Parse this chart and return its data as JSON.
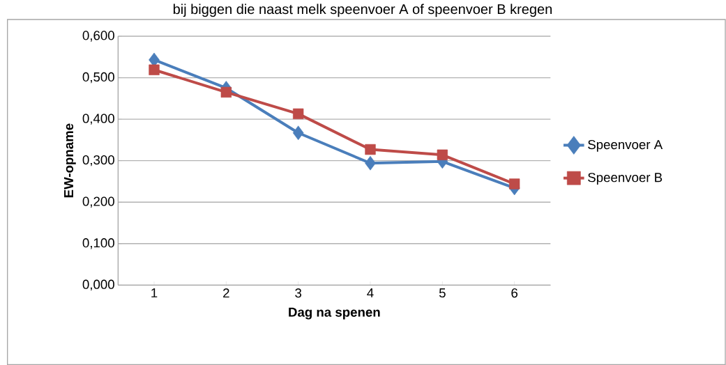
{
  "chart_data": {
    "type": "line",
    "title": "bij biggen die naast melk speenvoer A of speenvoer B kregen",
    "xlabel": "Dag na spenen",
    "ylabel": "EW-opname",
    "categories": [
      "1",
      "2",
      "3",
      "4",
      "5",
      "6"
    ],
    "series": [
      {
        "name": "Speenvoer A",
        "color": "#4a7ebb",
        "marker": "diamond",
        "values": [
          0.543,
          0.475,
          0.367,
          0.294,
          0.298,
          0.234
        ]
      },
      {
        "name": "Speenvoer B",
        "color": "#be4b48",
        "marker": "square",
        "values": [
          0.519,
          0.465,
          0.413,
          0.327,
          0.314,
          0.244
        ]
      }
    ],
    "ylim": [
      0,
      0.6
    ],
    "yticks": [
      {
        "value": 0,
        "label": "0,000"
      },
      {
        "value": 0.1,
        "label": "0,100"
      },
      {
        "value": 0.2,
        "label": "0,200"
      },
      {
        "value": 0.3,
        "label": "0,300"
      },
      {
        "value": 0.4,
        "label": "0,400"
      },
      {
        "value": 0.5,
        "label": "0,500"
      },
      {
        "value": 0.6,
        "label": "0,600"
      }
    ],
    "grid": "y",
    "legend": "right"
  }
}
